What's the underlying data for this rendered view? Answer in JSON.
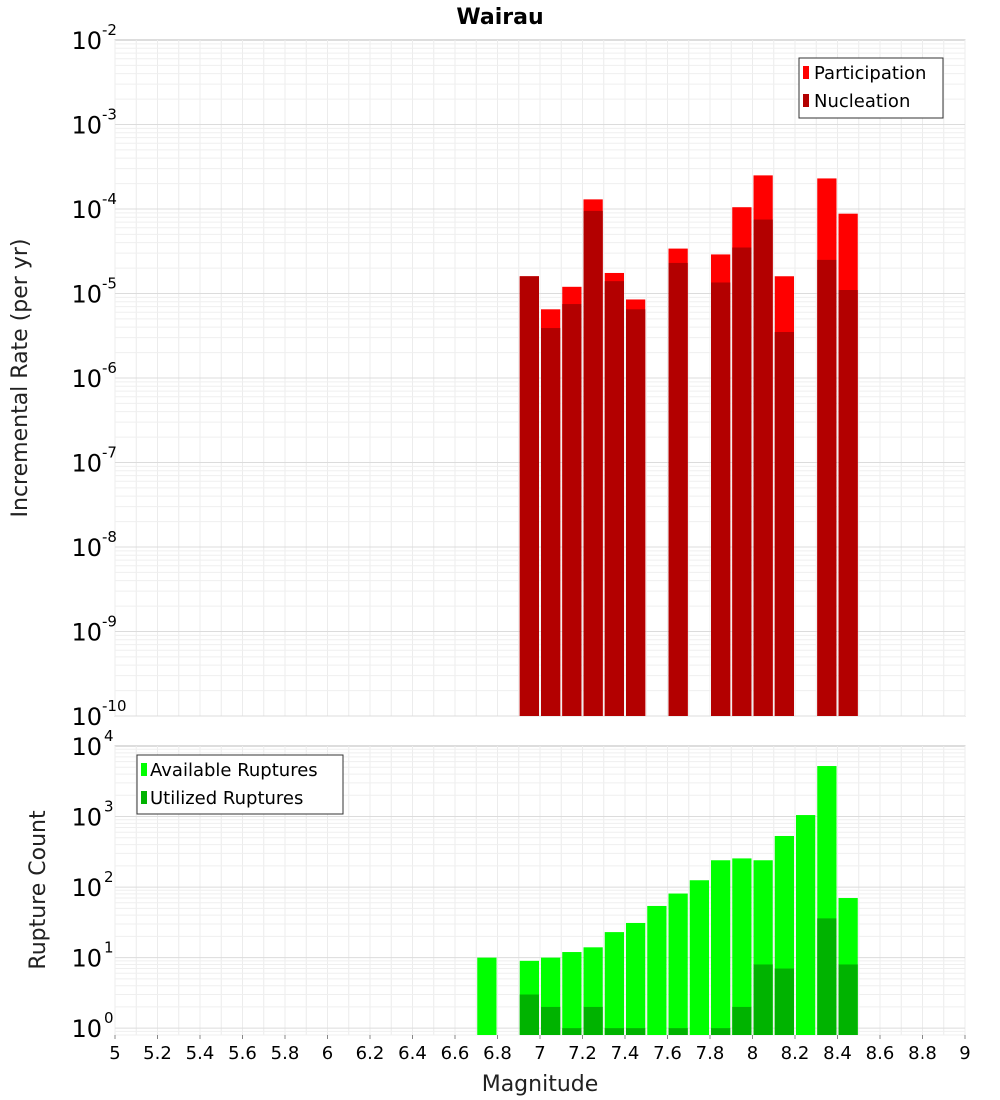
{
  "chart_data": [
    {
      "type": "bar",
      "title": "Wairau",
      "xlabel": "Magnitude",
      "ylabel": "Incremental Rate (per yr)",
      "yscale": "log",
      "ylim": [
        1e-10,
        0.01
      ],
      "xlim": [
        5,
        9
      ],
      "grid": true,
      "legend_placement": "top-right",
      "bin_width": 0.1,
      "y_tick_exponents": [
        "-10",
        "-9",
        "-8",
        "-7",
        "-6",
        "-5",
        "-4",
        "-3",
        "-2"
      ],
      "series": [
        {
          "name": "Participation",
          "color": "#ff0000",
          "points": [
            {
              "x": 6.95,
              "y": 1.6e-05
            },
            {
              "x": 7.05,
              "y": 6.5e-06
            },
            {
              "x": 7.15,
              "y": 1.2e-05
            },
            {
              "x": 7.25,
              "y": 0.00013
            },
            {
              "x": 7.35,
              "y": 1.75e-05
            },
            {
              "x": 7.45,
              "y": 8.5e-06
            },
            {
              "x": 7.65,
              "y": 3.4e-05
            },
            {
              "x": 7.85,
              "y": 2.9e-05
            },
            {
              "x": 7.95,
              "y": 0.000105
            },
            {
              "x": 8.05,
              "y": 0.00025
            },
            {
              "x": 8.15,
              "y": 1.6e-05
            },
            {
              "x": 8.35,
              "y": 0.00023
            },
            {
              "x": 8.45,
              "y": 8.8e-05
            }
          ]
        },
        {
          "name": "Nucleation",
          "color": "#b30000",
          "points": [
            {
              "x": 6.95,
              "y": 1.6e-05
            },
            {
              "x": 7.05,
              "y": 3.9e-06
            },
            {
              "x": 7.15,
              "y": 7.5e-06
            },
            {
              "x": 7.25,
              "y": 9.5e-05
            },
            {
              "x": 7.35,
              "y": 1.4e-05
            },
            {
              "x": 7.45,
              "y": 6.5e-06
            },
            {
              "x": 7.65,
              "y": 2.3e-05
            },
            {
              "x": 7.85,
              "y": 1.35e-05
            },
            {
              "x": 7.95,
              "y": 3.5e-05
            },
            {
              "x": 8.05,
              "y": 7.5e-05
            },
            {
              "x": 8.15,
              "y": 3.5e-06
            },
            {
              "x": 8.35,
              "y": 2.5e-05
            },
            {
              "x": 8.45,
              "y": 1.1e-05
            }
          ]
        }
      ]
    },
    {
      "type": "bar",
      "xlabel": "Magnitude",
      "ylabel": "Rupture Count",
      "yscale": "log",
      "ylim": [
        0.8,
        10000
      ],
      "xlim": [
        5,
        9
      ],
      "grid": true,
      "legend_placement": "top-left",
      "bin_width": 0.1,
      "x_ticks": [
        "5",
        "5.2",
        "5.4",
        "5.6",
        "5.8",
        "6",
        "6.2",
        "6.4",
        "6.6",
        "6.8",
        "7",
        "7.2",
        "7.4",
        "7.6",
        "7.8",
        "8",
        "8.2",
        "8.4",
        "8.6",
        "8.8",
        "9"
      ],
      "y_tick_exponents": [
        "0",
        "1",
        "2",
        "3",
        "4"
      ],
      "series": [
        {
          "name": "Available Ruptures",
          "color": "#00ff00",
          "points": [
            {
              "x": 6.75,
              "y": 10
            },
            {
              "x": 6.95,
              "y": 9
            },
            {
              "x": 7.05,
              "y": 10
            },
            {
              "x": 7.15,
              "y": 12
            },
            {
              "x": 7.25,
              "y": 14
            },
            {
              "x": 7.35,
              "y": 23
            },
            {
              "x": 7.45,
              "y": 31
            },
            {
              "x": 7.55,
              "y": 54
            },
            {
              "x": 7.65,
              "y": 81
            },
            {
              "x": 7.75,
              "y": 125
            },
            {
              "x": 7.85,
              "y": 240
            },
            {
              "x": 7.95,
              "y": 255
            },
            {
              "x": 8.05,
              "y": 240
            },
            {
              "x": 8.15,
              "y": 530
            },
            {
              "x": 8.25,
              "y": 1050
            },
            {
              "x": 8.35,
              "y": 5200
            },
            {
              "x": 8.45,
              "y": 70
            }
          ]
        },
        {
          "name": "Utilized Ruptures",
          "color": "#00b300",
          "points": [
            {
              "x": 6.95,
              "y": 3
            },
            {
              "x": 7.05,
              "y": 2
            },
            {
              "x": 7.15,
              "y": 1
            },
            {
              "x": 7.25,
              "y": 2
            },
            {
              "x": 7.35,
              "y": 1
            },
            {
              "x": 7.45,
              "y": 1
            },
            {
              "x": 7.65,
              "y": 1
            },
            {
              "x": 7.85,
              "y": 1
            },
            {
              "x": 7.95,
              "y": 2
            },
            {
              "x": 8.05,
              "y": 8
            },
            {
              "x": 8.15,
              "y": 7
            },
            {
              "x": 8.35,
              "y": 36
            },
            {
              "x": 8.45,
              "y": 8
            }
          ]
        }
      ]
    }
  ]
}
